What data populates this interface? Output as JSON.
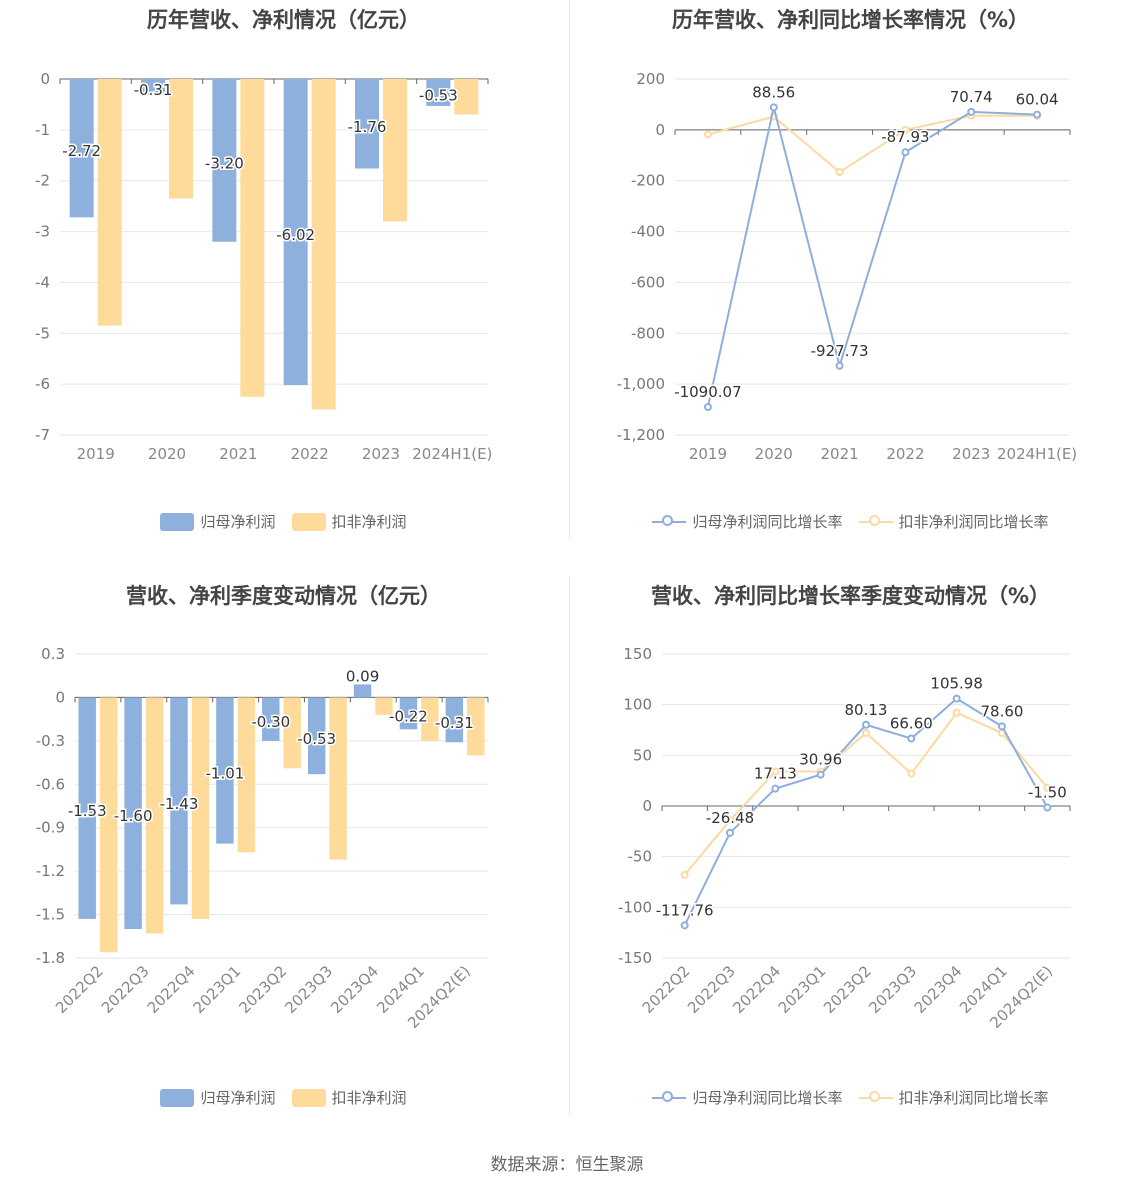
{
  "source": "数据来源：恒生聚源",
  "colors": {
    "blue": "#8eb0dc",
    "orange": "#fedb9b",
    "line_blue": "#8eaedb",
    "line_orange": "#fdd9a0"
  },
  "charts": [
    {
      "title": "历年营收、净利情况（亿元）",
      "legend": [
        "归母净利润",
        "扣非净利润"
      ],
      "chart_data": {
        "type": "bar",
        "categories": [
          "2019",
          "2020",
          "2021",
          "2022",
          "2023",
          "2024H1(E)"
        ],
        "series": [
          {
            "name": "归母净利润",
            "values": [
              -2.72,
              -0.31,
              -3.2,
              -6.02,
              -1.76,
              -0.53
            ],
            "labels": [
              "-2.72",
              "-0.31",
              "-3.20",
              "-6.02",
              "-1.76",
              "-0.53"
            ]
          },
          {
            "name": "扣非净利润",
            "values": [
              -4.85,
              -2.35,
              -6.25,
              -6.5,
              -2.8,
              -0.7
            ]
          }
        ],
        "yticks": [
          "0",
          "-1",
          "-2",
          "-3",
          "-4",
          "-5",
          "-6",
          "-7"
        ],
        "ylim": [
          -7,
          0
        ]
      }
    },
    {
      "title": "历年营收、净利同比增长率情况（%）",
      "legend": [
        "归母净利润同比增长率",
        "扣非净利润同比增长率"
      ],
      "chart_data": {
        "type": "line",
        "categories": [
          "2019",
          "2020",
          "2021",
          "2022",
          "2023",
          "2024H1(E)"
        ],
        "series": [
          {
            "name": "归母净利润同比增长率",
            "values": [
              -1090.07,
              88.56,
              -927.73,
              -87.93,
              70.74,
              60.04
            ],
            "labels": [
              "-1090.07",
              "88.56",
              "-927.73",
              "-87.93",
              "70.74",
              "60.04"
            ]
          },
          {
            "name": "扣非净利润同比增长率",
            "values": [
              -18,
              52,
              -166,
              0,
              56,
              55
            ]
          }
        ],
        "yticks": [
          "200",
          "0",
          "-200",
          "-400",
          "-600",
          "-800",
          "-1,000",
          "-1,200"
        ],
        "ylim": [
          -1200,
          200
        ]
      }
    },
    {
      "title": "营收、净利季度变动情况（亿元）",
      "legend": [
        "归母净利润",
        "扣非净利润"
      ],
      "chart_data": {
        "type": "bar",
        "categories": [
          "2022Q2",
          "2022Q3",
          "2022Q4",
          "2023Q1",
          "2023Q2",
          "2023Q3",
          "2023Q4",
          "2024Q1",
          "2024Q2(E)"
        ],
        "series": [
          {
            "name": "归母净利润",
            "values": [
              -1.53,
              -1.6,
              -1.43,
              -1.01,
              -0.3,
              -0.53,
              0.09,
              -0.22,
              -0.31
            ],
            "labels": [
              "-1.53",
              "-1.60",
              "-1.43",
              "-1.01",
              "-0.30",
              "-0.53",
              "0.09",
              "-0.22",
              "-0.31"
            ]
          },
          {
            "name": "扣非净利润",
            "values": [
              -1.76,
              -1.63,
              -1.53,
              -1.07,
              -0.49,
              -1.12,
              -0.12,
              -0.3,
              -0.4
            ]
          }
        ],
        "yticks": [
          "0.3",
          "0",
          "-0.3",
          "-0.6",
          "-0.9",
          "-1.2",
          "-1.5",
          "-1.8"
        ],
        "ylim": [
          -1.8,
          0.3
        ]
      }
    },
    {
      "title": "营收、净利同比增长率季度变动情况（%）",
      "legend": [
        "归母净利润同比增长率",
        "扣非净利润同比增长率"
      ],
      "chart_data": {
        "type": "line",
        "categories": [
          "2022Q2",
          "2022Q3",
          "2022Q4",
          "2023Q1",
          "2023Q2",
          "2023Q3",
          "2023Q4",
          "2024Q1",
          "2024Q2(E)"
        ],
        "series": [
          {
            "name": "归母净利润同比增长率",
            "values": [
              -117.76,
              -26.48,
              17.13,
              30.96,
              80.13,
              66.6,
              105.98,
              78.6,
              -1.5
            ],
            "labels": [
              "-117.76",
              "-26.48",
              "17.13",
              "30.96",
              "80.13",
              "66.60",
              "105.98",
              "78.60",
              "-1.50"
            ]
          },
          {
            "name": "扣非净利润同比增长率",
            "values": [
              -68,
              -14,
              34,
              34,
              72,
              32,
              92,
              72,
              18
            ]
          }
        ],
        "yticks": [
          "150",
          "100",
          "50",
          "0",
          "-50",
          "-100",
          "-150"
        ],
        "ylim": [
          -150,
          150
        ]
      }
    }
  ]
}
